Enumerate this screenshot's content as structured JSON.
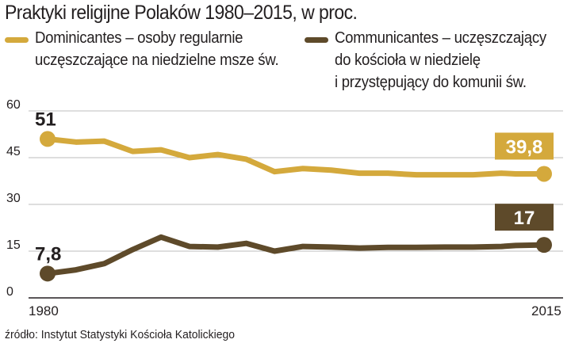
{
  "chart_data": {
    "type": "line",
    "title": "Praktyki religijne Polaków 1980–2015, w proc.",
    "x": [
      1980,
      1982,
      1984,
      1986,
      1988,
      1990,
      1992,
      1994,
      1996,
      1998,
      2000,
      2002,
      2004,
      2006,
      2008,
      2010,
      2012,
      2013,
      2015
    ],
    "series": [
      {
        "name": "Dominicantes",
        "legend": "Dominicantes – osoby regularnie uczęszczające na niedzielne msze św.",
        "legend_lines": [
          "Dominicantes – osoby regularnie",
          "uczęszczające na niedzielne msze św."
        ],
        "color": "#d4a93c",
        "values": [
          51,
          50,
          50.3,
          47,
          47.5,
          45,
          46,
          44.5,
          40.5,
          41.5,
          41,
          40,
          40,
          39.5,
          39.5,
          39.5,
          40,
          39.8,
          39.8
        ],
        "start_label": "51",
        "end_label": "39,8"
      },
      {
        "name": "Communicantes",
        "legend": "Communicantes – uczęszczający do kościoła w niedzielę i przystępujący do komunii św.",
        "legend_lines": [
          "Communicantes – uczęszczający",
          "do kościoła w niedzielę",
          "i przystępujący do komunii św."
        ],
        "color": "#5e4a2a",
        "values": [
          7.8,
          9,
          11,
          15.5,
          19.5,
          16.5,
          16.3,
          17.5,
          15,
          16.5,
          16.3,
          16,
          16.2,
          16.2,
          16.3,
          16.3,
          16.5,
          16.8,
          17
        ],
        "start_label": "7,8",
        "end_label": "17"
      }
    ],
    "y_ticks": [
      "0",
      "15",
      "30",
      "45",
      "60"
    ],
    "x_ticks": [
      "1980",
      "2015"
    ],
    "ylim": [
      0,
      60
    ],
    "xlim": [
      1980,
      2015
    ],
    "grid": true,
    "xlabel": "",
    "ylabel": ""
  },
  "source": "źródło: Instytut Statystyki Kościoła Katolickiego"
}
